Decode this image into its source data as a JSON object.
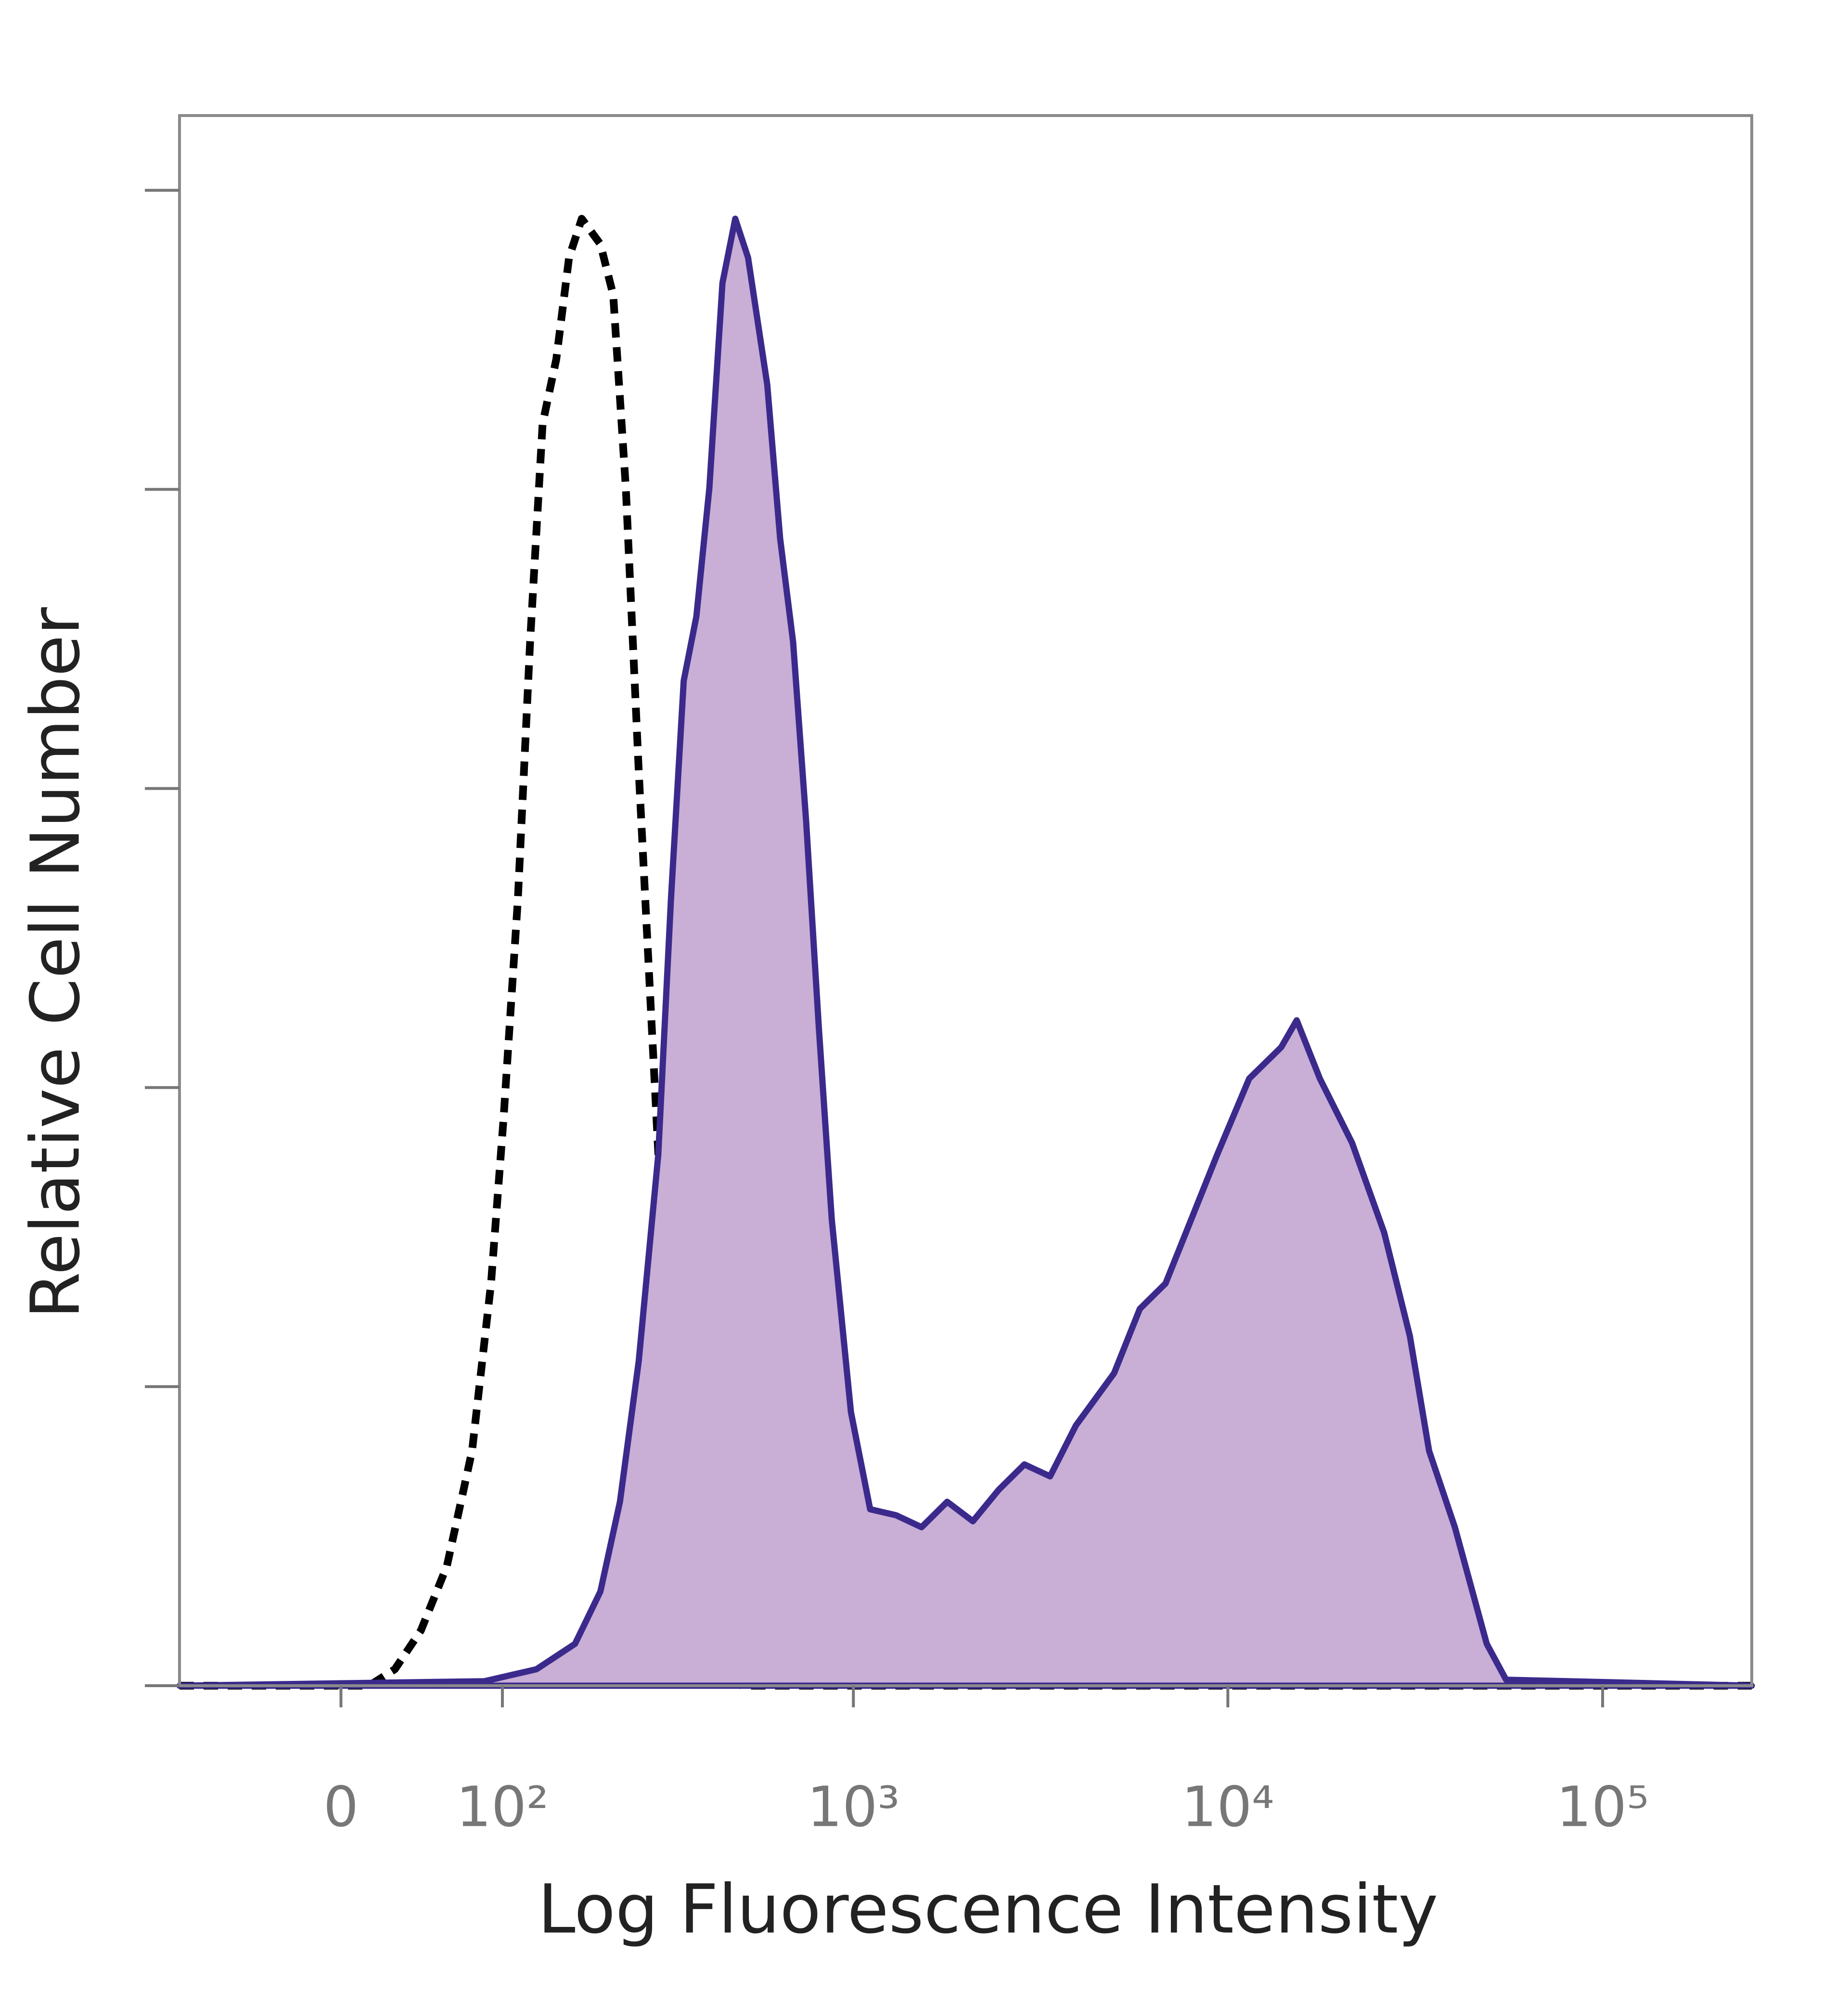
{
  "chart_data": {
    "type": "histogram-overlay",
    "x_label": "Log Fluorescence Intensity",
    "y_label": "Relative Cell Number",
    "xscale": "biexponential",
    "xlim": [
      -100,
      250000
    ],
    "xticks": [
      0,
      {
        "value": 100,
        "label": "10²"
      },
      {
        "value": 1000,
        "label": "10³"
      },
      {
        "value": 10000,
        "label": "10⁴"
      },
      {
        "value": 100000,
        "label": "10⁵"
      }
    ],
    "ylim": [
      0,
      105
    ],
    "yticks": [
      0,
      20,
      40,
      60,
      80,
      100
    ],
    "series": [
      {
        "color": "#000000",
        "dash": true,
        "fill": null,
        "x": [
          -100,
          15,
          29,
          44,
          60,
          77,
          91,
          101,
          113,
          124,
          136,
          150,
          164,
          179,
          203,
          221,
          240,
          261,
          284,
          309,
          334,
          377,
          426,
          501,
          250000
        ],
        "values": [
          0,
          0,
          1.1,
          3.7,
          8.0,
          15.7,
          26.9,
          38.0,
          52.6,
          69.8,
          84.4,
          88.7,
          95.5,
          98.1,
          96.4,
          93.0,
          80.1,
          61.2,
          44.0,
          26.9,
          14.0,
          3.7,
          0.7,
          0,
          0
        ]
      },
      {
        "color": "#3b2a8c",
        "dash": false,
        "fill": "#c9aed6",
        "x": [
          -100,
          86,
          130,
          171,
          203,
          231,
          261,
          296,
          321,
          348,
          377,
          409,
          444,
          481,
          521,
          587,
          636,
          689,
          747,
          808,
          875,
          985,
          1109,
          1300,
          1522,
          1782,
          2087,
          2445,
          2864,
          3354,
          3930,
          4971,
          5822,
          6820,
          7990,
          9360,
          11400,
          13880,
          15270,
          17600,
          21450,
          26130,
          30590,
          34440,
          40340,
          49070,
          55260,
          250000
        ],
        "values": [
          0,
          0.3,
          1.1,
          2.8,
          6.3,
          12.3,
          21.7,
          35.5,
          52.6,
          67.2,
          71.5,
          80.1,
          93.8,
          98.1,
          95.5,
          87.0,
          76.7,
          69.8,
          57.8,
          44.0,
          31.2,
          18.3,
          11.8,
          11.4,
          10.6,
          12.3,
          11.0,
          13.1,
          14.8,
          14.0,
          17.4,
          20.9,
          25.2,
          26.9,
          31.2,
          35.5,
          40.6,
          42.7,
          44.5,
          40.6,
          36.3,
          30.3,
          23.4,
          15.7,
          10.6,
          2.8,
          0.4,
          0
        ]
      }
    ]
  }
}
